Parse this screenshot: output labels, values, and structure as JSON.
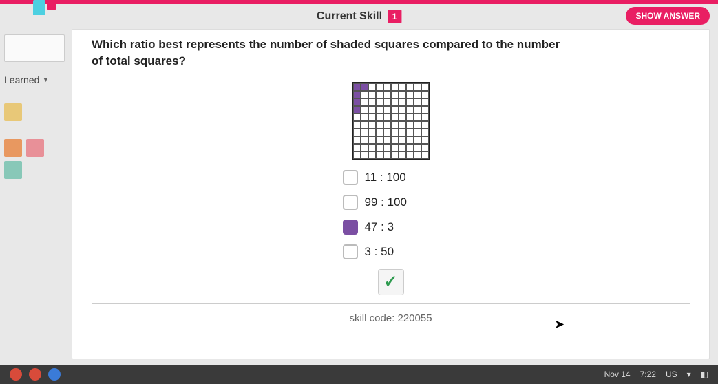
{
  "header": {
    "current_skill_label": "Current Skill",
    "skill_badge": "1",
    "show_answer": "SHOW ANSWER"
  },
  "sidebar": {
    "learned_label": "Learned",
    "swatches": {
      "warm": "#e8c878",
      "orange": "#e89860",
      "pink": "#e89098",
      "teal": "#88c8b8"
    }
  },
  "question": {
    "text": "Which ratio best represents the number of shaded squares compared to the number of total squares?"
  },
  "grid": {
    "rows": 10,
    "cols": 10,
    "shaded_color": "#7b4fa3",
    "cells": [
      [
        1,
        1,
        0,
        0,
        0,
        0,
        0,
        0,
        0,
        0
      ],
      [
        1,
        0,
        0,
        0,
        0,
        0,
        0,
        0,
        0,
        0
      ],
      [
        1,
        0,
        0,
        0,
        0,
        0,
        0,
        0,
        0,
        0
      ],
      [
        1,
        0,
        0,
        0,
        0,
        0,
        0,
        0,
        0,
        0
      ],
      [
        0,
        0,
        0,
        0,
        0,
        0,
        0,
        0,
        0,
        0
      ],
      [
        0,
        0,
        0,
        0,
        0,
        0,
        0,
        0,
        0,
        0
      ],
      [
        0,
        0,
        0,
        0,
        0,
        0,
        0,
        0,
        0,
        0
      ],
      [
        0,
        0,
        0,
        0,
        0,
        0,
        0,
        0,
        0,
        0
      ],
      [
        0,
        0,
        0,
        0,
        0,
        0,
        0,
        0,
        0,
        0
      ],
      [
        0,
        0,
        0,
        0,
        0,
        0,
        0,
        0,
        0,
        0
      ]
    ]
  },
  "options": [
    {
      "label": "11 : 100",
      "selected": false
    },
    {
      "label": "99 : 100",
      "selected": false
    },
    {
      "label": "47 : 3",
      "selected": true
    },
    {
      "label": "3 : 50",
      "selected": false
    }
  ],
  "skill_code_label": "skill code: 220055",
  "taskbar": {
    "date": "Nov 14",
    "time": "7:22",
    "locale": "US"
  },
  "colors": {
    "accent": "#e91e63",
    "check": "#2e9b4f"
  }
}
